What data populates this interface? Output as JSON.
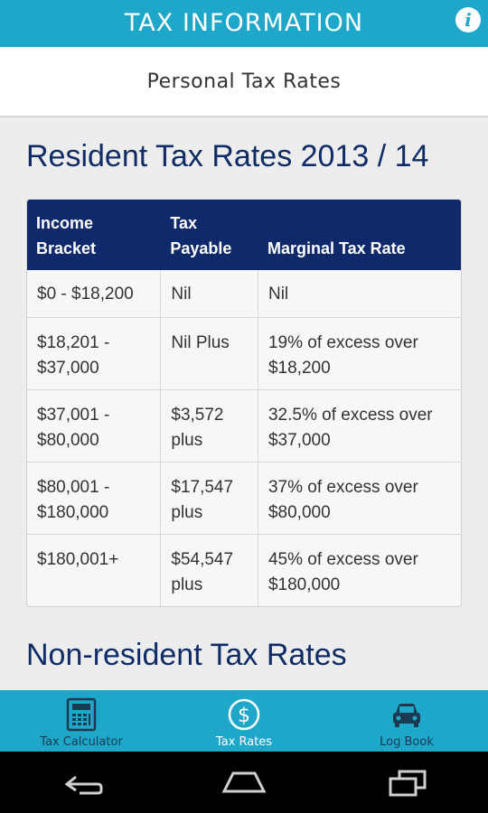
{
  "header": {
    "title": "TAX INFORMATION",
    "info_icon": "info-icon"
  },
  "subheader": {
    "title": "Personal Tax Rates"
  },
  "resident": {
    "title": "Resident Tax Rates 2013 / 14",
    "table": {
      "headers": [
        "Income\nBracket",
        "Tax\nPayable",
        "Marginal Tax Rate"
      ],
      "rows": [
        [
          "$0 - $18,200",
          "Nil",
          "Nil"
        ],
        [
          "$18,201 -\n$37,000",
          "Nil Plus",
          "19% of excess over\n$18,200"
        ],
        [
          "$37,001 -\n$80,000",
          "$3,572\nplus",
          "32.5% of excess over\n$37,000"
        ],
        [
          "$80,001 -\n$180,000",
          "$17,547\nplus",
          "37% of excess over\n$80,000"
        ],
        [
          "$180,001+",
          "$54,547\nplus",
          "45% of excess over\n$180,000"
        ]
      ]
    }
  },
  "nonresident": {
    "title": "Non-resident Tax Rates"
  },
  "bottom_nav": {
    "items": [
      {
        "label": "Tax Calculator",
        "icon": "calculator-icon",
        "active": false
      },
      {
        "label": "Tax Rates",
        "icon": "dollar-icon",
        "active": true
      },
      {
        "label": "Log Book",
        "icon": "car-icon",
        "active": false
      }
    ]
  },
  "system_nav": {
    "icons": [
      "back-icon",
      "home-icon",
      "recent-apps-icon"
    ]
  },
  "colors": {
    "topbar": "#1ea7c8",
    "table_header": "#10296a",
    "section_title": "#0f2c66",
    "inactive_nav": "#1b3a52"
  }
}
